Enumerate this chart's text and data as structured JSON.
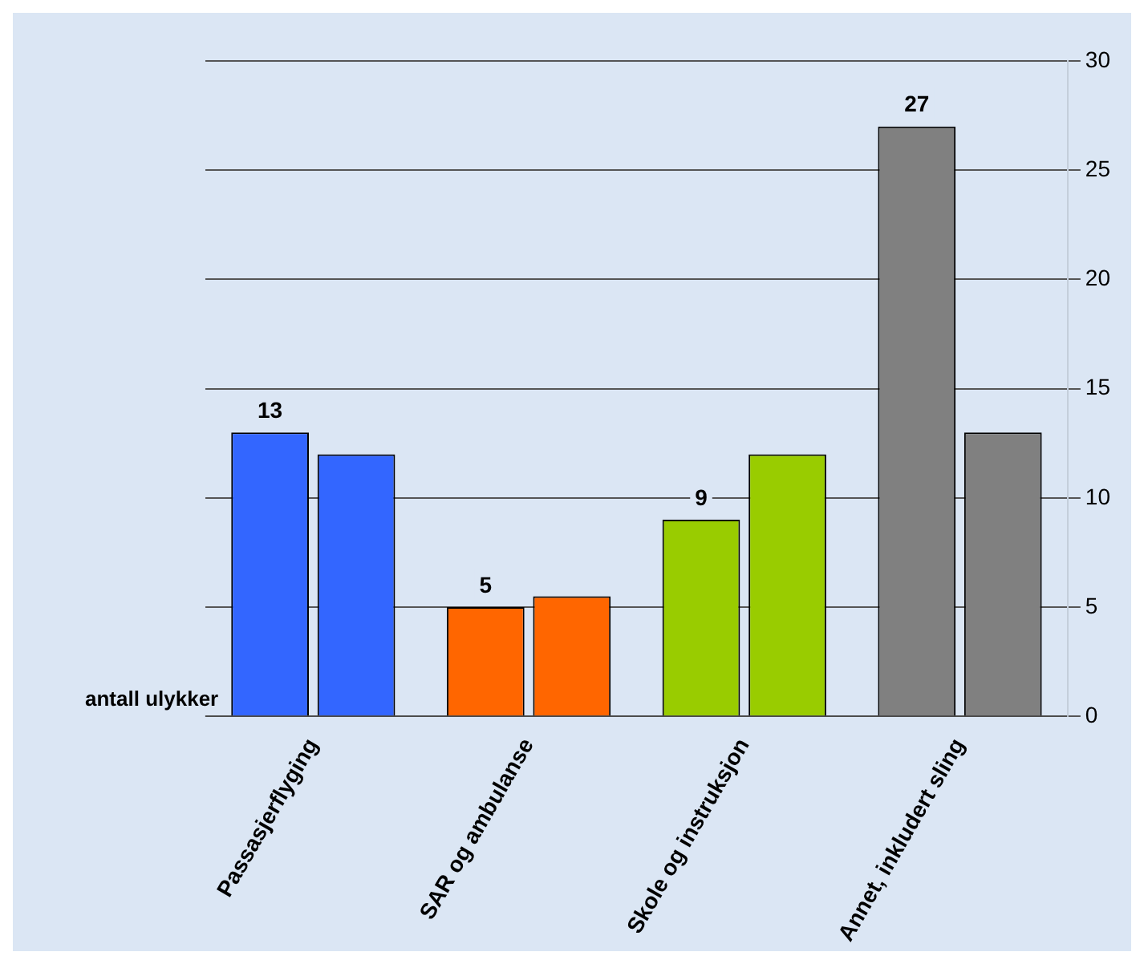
{
  "chart_data": {
    "type": "bar",
    "categories": [
      "Passasjerflyging",
      "SAR og ambulanse",
      "Skole og instruksjon",
      "Annet, inkludert sling"
    ],
    "series": [
      {
        "name": "antall ulykker",
        "colors": [
          "#3366ff",
          "#ff6600",
          "#99cc00",
          "#808080"
        ],
        "values": [
          13,
          5,
          9,
          27
        ],
        "value_labels": [
          "13",
          "5",
          "9",
          "27"
        ]
      },
      {
        "colors": [
          "#3366ff",
          "#ff6600",
          "#99cc00",
          "#808080"
        ],
        "values": [
          12,
          5.5,
          12,
          13
        ]
      }
    ],
    "ylim": [
      0,
      30
    ],
    "yticks": [
      0,
      5,
      10,
      15,
      20,
      25,
      30
    ],
    "grid": "y",
    "legend": false
  }
}
